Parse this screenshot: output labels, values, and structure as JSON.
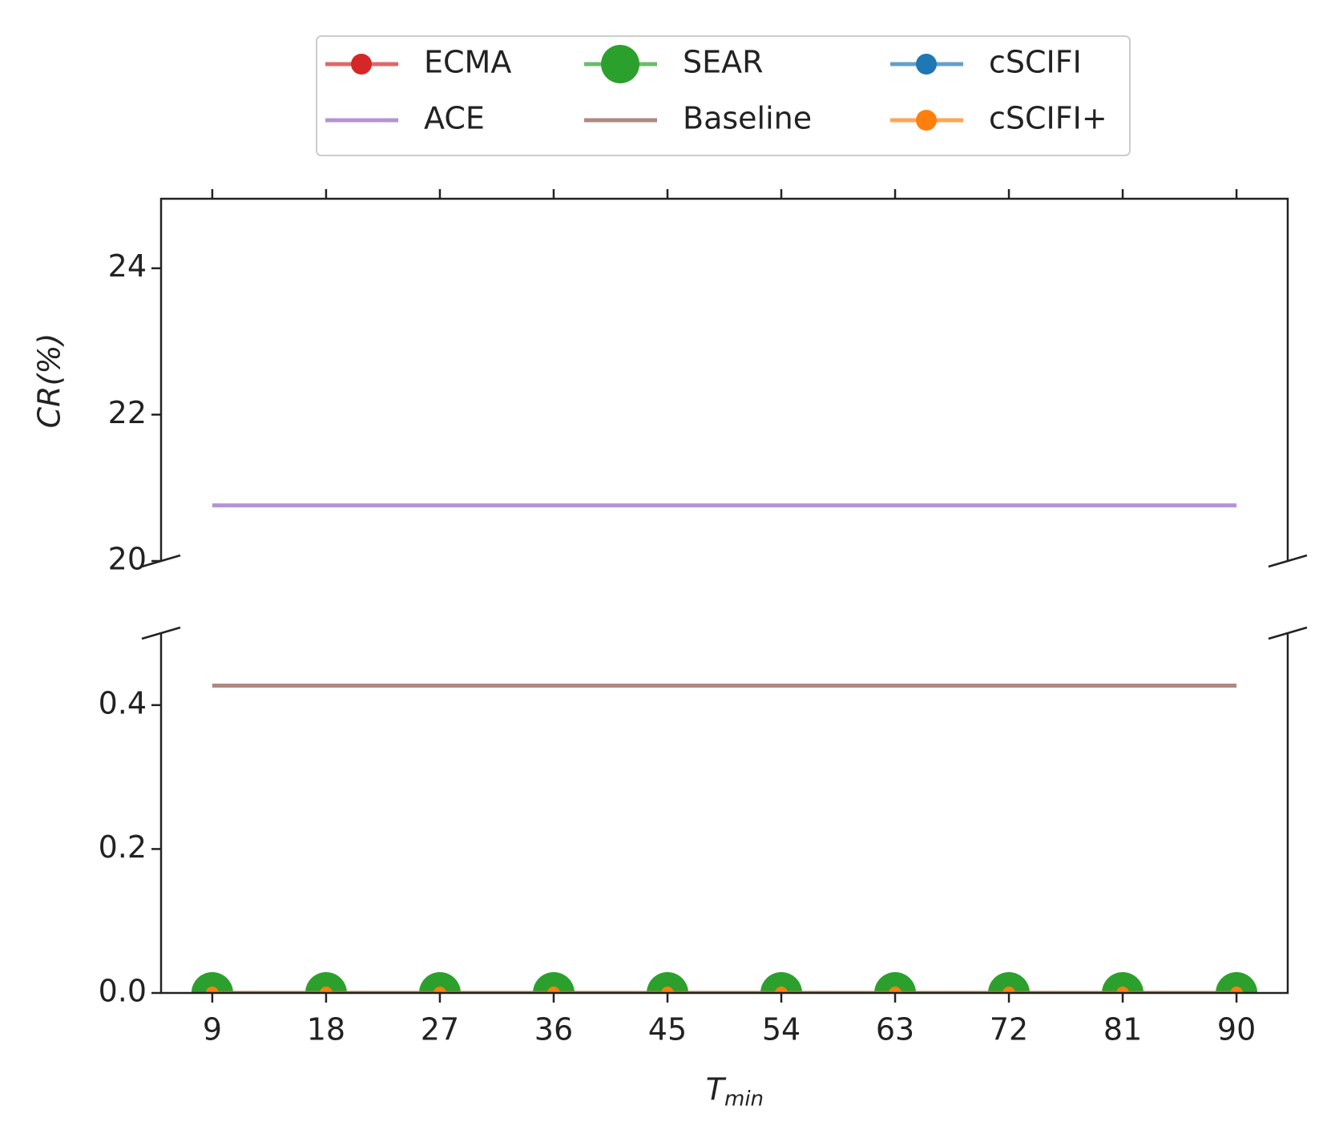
{
  "chart_data": {
    "type": "line",
    "x": [
      9,
      18,
      27,
      36,
      45,
      54,
      63,
      72,
      81,
      90
    ],
    "xlim": [
      4.95,
      94.05
    ],
    "xticks": [
      9,
      18,
      27,
      36,
      45,
      54,
      63,
      72,
      81,
      90
    ],
    "x_label": {
      "text": "T",
      "subscript": "min"
    },
    "y_label": "CR(%)",
    "panels": [
      {
        "ylim": [
          20,
          24.95
        ],
        "yticks": [
          20,
          22,
          24
        ]
      },
      {
        "ylim": [
          0,
          0.5
        ],
        "yticks": [
          {
            "value": 0,
            "label": "0.0"
          },
          {
            "value": 0.2,
            "label": "0.2"
          },
          {
            "value": 0.4,
            "label": "0.4"
          }
        ]
      }
    ],
    "broken_axis": true,
    "line_alpha": 0.7,
    "legend": "upper center",
    "legend_columns": 3,
    "series": [
      {
        "name": "ECMA",
        "color": "#d62728",
        "marker": "small",
        "values": [
          0,
          0,
          0,
          0,
          0,
          0,
          0,
          0,
          0,
          0
        ]
      },
      {
        "name": "ACE",
        "color": "#9467bd",
        "marker": "none",
        "values": [
          20.76,
          20.76,
          20.76,
          20.76,
          20.76,
          20.76,
          20.76,
          20.76,
          20.76,
          20.76
        ]
      },
      {
        "name": "SEAR",
        "color": "#2ca02c",
        "marker": "large",
        "values": [
          0,
          0,
          0,
          0,
          0,
          0,
          0,
          0,
          0,
          0
        ]
      },
      {
        "name": "Baseline",
        "color": "#8c564b",
        "marker": "none",
        "values": [
          0.427,
          0.427,
          0.427,
          0.427,
          0.427,
          0.427,
          0.427,
          0.427,
          0.427,
          0.427
        ]
      },
      {
        "name": "cSCIFI",
        "color": "#1f77b4",
        "marker": "small",
        "values": [
          0,
          0,
          0,
          0,
          0,
          0,
          0,
          0,
          0,
          0
        ]
      },
      {
        "name": "cSCIFI+",
        "color": "#ff7f0e",
        "marker": "small",
        "values": [
          0,
          0,
          0,
          0,
          0,
          0,
          0,
          0,
          0,
          0
        ]
      }
    ]
  }
}
